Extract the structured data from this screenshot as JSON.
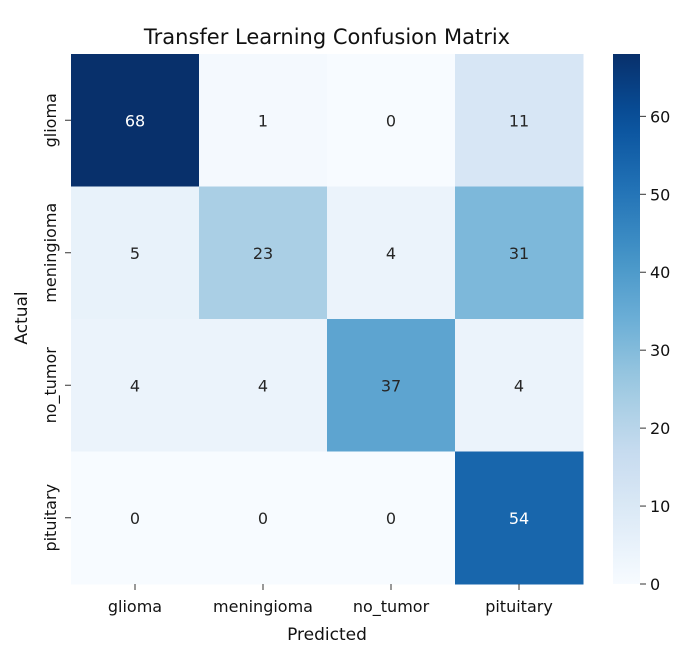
{
  "chart_data": {
    "type": "heatmap",
    "title": "Transfer Learning Confusion Matrix",
    "xlabel": "Predicted",
    "ylabel": "Actual",
    "x_categories": [
      "glioma",
      "meningioma",
      "no_tumor",
      "pituitary"
    ],
    "y_categories": [
      "glioma",
      "meningioma",
      "no_tumor",
      "pituitary"
    ],
    "values": [
      [
        68,
        1,
        0,
        11
      ],
      [
        5,
        23,
        4,
        31
      ],
      [
        4,
        4,
        37,
        4
      ],
      [
        0,
        0,
        0,
        54
      ]
    ],
    "colormap": "Blues",
    "colorbar": {
      "range": [
        0,
        68
      ],
      "ticks": [
        0,
        10,
        20,
        30,
        40,
        50,
        60
      ],
      "position": "right"
    },
    "grid": false
  }
}
